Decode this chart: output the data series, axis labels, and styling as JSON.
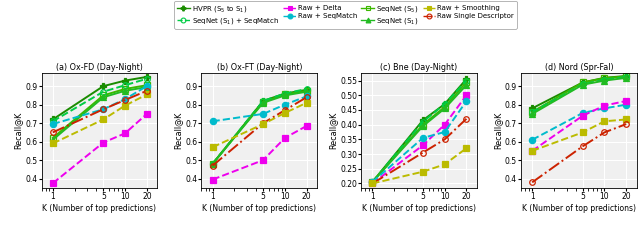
{
  "x": [
    1,
    5,
    10,
    20
  ],
  "subplots": [
    {
      "title": "(a) Ox-FD (Day-Night)",
      "ylim": [
        0.35,
        0.97
      ],
      "yticks": [
        0.4,
        0.5,
        0.6,
        0.7,
        0.8,
        0.9
      ],
      "series_order": [
        "HVPR",
        "SeqNet_S5",
        "SeqNet_S1_SeqMatch",
        "SeqNet_S1",
        "Raw_SeqMatch",
        "Raw_Smoothing",
        "Raw_Single",
        "Raw_Delta"
      ],
      "series": {
        "HVPR": [
          0.72,
          0.9,
          0.93,
          0.95
        ],
        "SeqNet_S5": [
          0.62,
          0.85,
          0.885,
          0.905
        ],
        "SeqNet_S1_SeqMatch": [
          0.71,
          0.87,
          0.905,
          0.94
        ],
        "SeqNet_S1": [
          0.61,
          0.84,
          0.875,
          0.895
        ],
        "Raw_Delta": [
          0.375,
          0.595,
          0.645,
          0.75
        ],
        "Raw_Smoothing": [
          0.59,
          0.72,
          0.795,
          0.855
        ],
        "Raw_SeqMatch": [
          0.695,
          0.775,
          0.83,
          0.9
        ],
        "Raw_Single": [
          0.65,
          0.775,
          0.825,
          0.875
        ]
      }
    },
    {
      "title": "(b) Ox-FT (Day-Night)",
      "ylim": [
        0.35,
        0.97
      ],
      "yticks": [
        0.4,
        0.5,
        0.6,
        0.7,
        0.8,
        0.9
      ],
      "series_order": [
        "HVPR",
        "SeqNet_S5",
        "SeqNet_S1_SeqMatch",
        "SeqNet_S1",
        "Raw_SeqMatch",
        "Raw_Single",
        "Raw_Smoothing",
        "Raw_Delta"
      ],
      "series": {
        "HVPR": [
          0.48,
          0.82,
          0.86,
          0.88
        ],
        "SeqNet_S5": [
          0.48,
          0.815,
          0.855,
          0.875
        ],
        "SeqNet_S1_SeqMatch": [
          0.48,
          0.82,
          0.86,
          0.885
        ],
        "SeqNet_S1": [
          0.48,
          0.81,
          0.85,
          0.87
        ],
        "Raw_Delta": [
          0.395,
          0.5,
          0.62,
          0.685
        ],
        "Raw_Smoothing": [
          0.57,
          0.695,
          0.755,
          0.81
        ],
        "Raw_SeqMatch": [
          0.71,
          0.75,
          0.8,
          0.845
        ],
        "Raw_Single": [
          0.47,
          0.7,
          0.77,
          0.84
        ]
      }
    },
    {
      "title": "(c) Bne (Day-Night)",
      "ylim": [
        0.185,
        0.575
      ],
      "yticks": [
        0.2,
        0.25,
        0.3,
        0.35,
        0.4,
        0.45,
        0.5,
        0.55
      ],
      "series_order": [
        "HVPR",
        "SeqNet_S5",
        "SeqNet_S1_SeqMatch",
        "SeqNet_S1",
        "Raw_Delta",
        "Raw_SeqMatch",
        "Raw_Single",
        "Raw_Smoothing"
      ],
      "series": {
        "HVPR": [
          0.205,
          0.415,
          0.47,
          0.555
        ],
        "SeqNet_S5": [
          0.205,
          0.4,
          0.46,
          0.545
        ],
        "SeqNet_S1_SeqMatch": [
          0.205,
          0.41,
          0.47,
          0.55
        ],
        "SeqNet_S1": [
          0.205,
          0.395,
          0.455,
          0.535
        ],
        "Raw_Delta": [
          0.2,
          0.33,
          0.4,
          0.5
        ],
        "Raw_Smoothing": [
          0.2,
          0.24,
          0.265,
          0.32
        ],
        "Raw_SeqMatch": [
          0.205,
          0.355,
          0.375,
          0.48
        ],
        "Raw_Single": [
          0.2,
          0.305,
          0.35,
          0.42
        ]
      }
    },
    {
      "title": "(d) Nord (Spr-Fal)",
      "ylim": [
        0.35,
        0.97
      ],
      "yticks": [
        0.4,
        0.5,
        0.6,
        0.7,
        0.8,
        0.9
      ],
      "series_order": [
        "HVPR",
        "SeqNet_S5",
        "SeqNet_S1_SeqMatch",
        "SeqNet_S1",
        "Raw_SeqMatch",
        "Raw_Delta",
        "Raw_Smoothing",
        "Raw_Single"
      ],
      "series": {
        "HVPR": [
          0.78,
          0.92,
          0.945,
          0.955
        ],
        "SeqNet_S5": [
          0.76,
          0.92,
          0.943,
          0.953
        ],
        "SeqNet_S1_SeqMatch": [
          0.76,
          0.91,
          0.935,
          0.95
        ],
        "SeqNet_S1": [
          0.75,
          0.908,
          0.93,
          0.945
        ],
        "Raw_Delta": [
          0.55,
          0.74,
          0.795,
          0.82
        ],
        "Raw_Smoothing": [
          0.55,
          0.65,
          0.71,
          0.72
        ],
        "Raw_SeqMatch": [
          0.61,
          0.755,
          0.78,
          0.8
        ],
        "Raw_Single": [
          0.38,
          0.575,
          0.65,
          0.695
        ]
      }
    }
  ],
  "series_styles": {
    "HVPR": {
      "color": "#1a8c00",
      "marker": "P",
      "linestyle": "-",
      "markersize": 4.5,
      "linewidth": 1.4,
      "fillstyle": "full"
    },
    "SeqNet_S5": {
      "color": "#3cb800",
      "marker": "s",
      "linestyle": "-",
      "markersize": 4.0,
      "linewidth": 1.4,
      "fillstyle": "none"
    },
    "SeqNet_S1_SeqMatch": {
      "color": "#00cc44",
      "marker": "o",
      "linestyle": "--",
      "markersize": 4.0,
      "linewidth": 1.4,
      "fillstyle": "none"
    },
    "SeqNet_S1": {
      "color": "#22bb22",
      "marker": "^",
      "linestyle": "-",
      "markersize": 4.0,
      "linewidth": 1.4,
      "fillstyle": "full"
    },
    "Raw_Delta": {
      "color": "#ee00ee",
      "marker": "s",
      "linestyle": "--",
      "markersize": 4.5,
      "linewidth": 1.4,
      "fillstyle": "full"
    },
    "Raw_Smoothing": {
      "color": "#bbbb00",
      "marker": "s",
      "linestyle": "--",
      "markersize": 4.5,
      "linewidth": 1.4,
      "fillstyle": "full"
    },
    "Raw_SeqMatch": {
      "color": "#00bbcc",
      "marker": "o",
      "linestyle": "--",
      "markersize": 4.5,
      "linewidth": 1.4,
      "fillstyle": "full"
    },
    "Raw_Single": {
      "color": "#cc2200",
      "marker": "o",
      "linestyle": "-.",
      "markersize": 4.0,
      "linewidth": 1.4,
      "fillstyle": "none"
    }
  },
  "legend_rows": [
    [
      {
        "key": "HVPR",
        "label": "HVPR (S$_5$ to S$_1$)"
      },
      {
        "key": "SeqNet_S1_SeqMatch",
        "label": "SeqNet (S$_1$) + SeqMatch"
      },
      {
        "key": "Raw_Delta",
        "label": "Raw + Delta"
      },
      {
        "key": "Raw_SeqMatch",
        "label": "Raw + SeqMatch"
      }
    ],
    [
      {
        "key": "SeqNet_S5",
        "label": "SeqNet (S$_5$)"
      },
      {
        "key": "SeqNet_S1",
        "label": "SeqNet (S$_1$)"
      },
      {
        "key": "Raw_Smoothing",
        "label": "Raw + Smoothing"
      },
      {
        "key": "Raw_Single",
        "label": "Raw Single Descriptor"
      }
    ]
  ],
  "xlabel": "K (Number of top predictions)",
  "ylabel": "Recall@K",
  "background_color": "#f0f0f0"
}
